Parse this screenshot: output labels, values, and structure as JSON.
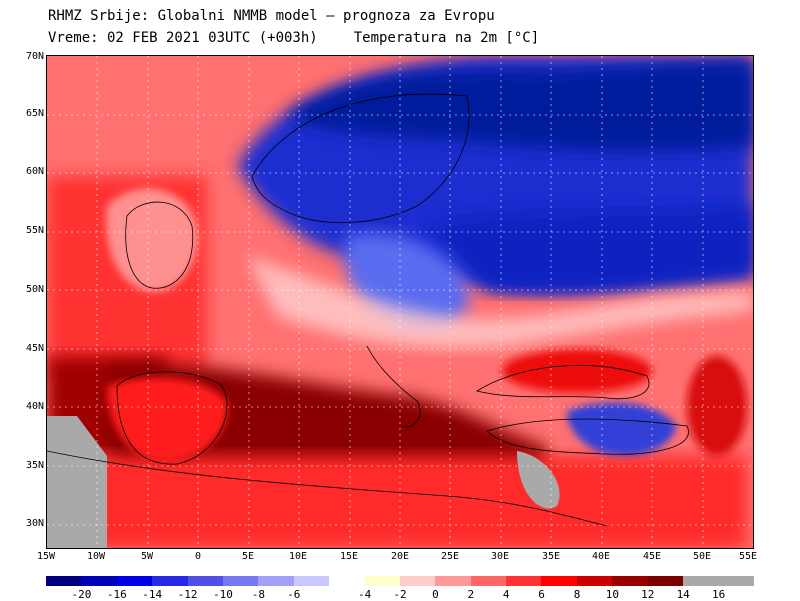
{
  "title": {
    "line1": "RHMZ Srbije: Globalni NMMB model — prognoza za Evropu",
    "line2_time": "Vreme: 02 FEB 2021 03UTC (+003h)",
    "line2_field": "Temperatura na 2m [°C]"
  },
  "axes": {
    "lat_labels": [
      "70N",
      "65N",
      "60N",
      "55N",
      "50N",
      "45N",
      "40N",
      "35N",
      "30N"
    ],
    "lon_labels": [
      "15W",
      "10W",
      "5W",
      "0",
      "5E",
      "10E",
      "15E",
      "20E",
      "25E",
      "30E",
      "35E",
      "40E",
      "45E",
      "50E",
      "55E"
    ]
  },
  "legend": {
    "colors": [
      "#00007f",
      "#0000b4",
      "#0000e6",
      "#2a2ae6",
      "#5050e6",
      "#7878f0",
      "#a0a0f8",
      "#c8c8ff",
      "#ffffff",
      "#ffffcc",
      "#ffcccc",
      "#ff9999",
      "#ff6666",
      "#ff3333",
      "#ff0000",
      "#cc0000",
      "#990000",
      "#7a0000",
      "#a9a9a9",
      "#a9a9a9"
    ],
    "labels": [
      "-20",
      "-16",
      "-14",
      "-12",
      "-10",
      "-8",
      "-6",
      "-4",
      "-2",
      "0",
      "2",
      "4",
      "6",
      "8",
      "10",
      "12",
      "14",
      "16"
    ]
  }
}
